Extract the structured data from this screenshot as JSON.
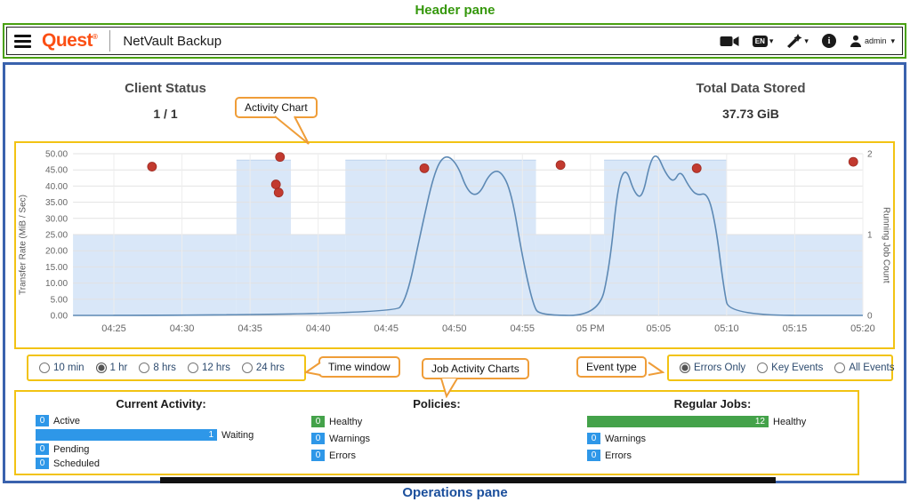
{
  "annotations": {
    "header_pane_label": "Header pane",
    "operations_pane_label": "Operations pane",
    "callouts": {
      "activity_chart": "Activity Chart",
      "time_window": "Time window",
      "job_activity_charts": "Job Activity Charts",
      "event_type": "Event type"
    }
  },
  "header": {
    "logo_text": "Quest",
    "logo_reg_mark": "®",
    "app_title": "NetVault Backup",
    "language_badge": "EN",
    "user_name": "admin",
    "icons": {
      "caret_down": "▾",
      "info_letter": "i"
    }
  },
  "summary": {
    "client_status": {
      "label": "Client Status",
      "value": "1 / 1"
    },
    "total_data_stored": {
      "label": "Total Data Stored",
      "value": "37.73 GiB"
    }
  },
  "chart_data": {
    "type": "line",
    "description": "Activity chart: transfer-rate line, running-job-count step area, error-event dots",
    "x_domain_minutes": [
      262,
      320
    ],
    "x_ticks": [
      {
        "t": 265,
        "label": "04:25"
      },
      {
        "t": 270,
        "label": "04:30"
      },
      {
        "t": 275,
        "label": "04:35"
      },
      {
        "t": 280,
        "label": "04:40"
      },
      {
        "t": 285,
        "label": "04:45"
      },
      {
        "t": 290,
        "label": "04:50"
      },
      {
        "t": 295,
        "label": "04:55"
      },
      {
        "t": 300,
        "label": "05 PM"
      },
      {
        "t": 305,
        "label": "05:05"
      },
      {
        "t": 310,
        "label": "05:10"
      },
      {
        "t": 315,
        "label": "05:15"
      },
      {
        "t": 320,
        "label": "05:20"
      }
    ],
    "y_left": {
      "label": "Transfer Rate (MiB / Sec)",
      "min": 0,
      "max": 50,
      "tick_step": 5
    },
    "y_right": {
      "label": "Running Job Count",
      "ticks": [
        0,
        1,
        2
      ]
    },
    "series": [
      {
        "name": "Running Job Count",
        "type": "step_area",
        "fill": "#d9e7f8",
        "edge": "#bdd4ee",
        "segments": [
          {
            "from": 262,
            "to": 274,
            "count": 1
          },
          {
            "from": 274,
            "to": 278,
            "count": 2
          },
          {
            "from": 278,
            "to": 282,
            "count": 1
          },
          {
            "from": 282,
            "to": 296,
            "count": 2
          },
          {
            "from": 296,
            "to": 301,
            "count": 1
          },
          {
            "from": 301,
            "to": 310,
            "count": 2
          },
          {
            "from": 310,
            "to": 320,
            "count": 1
          }
        ]
      },
      {
        "name": "Transfer Rate (MiB/Sec)",
        "type": "line",
        "color": "#5d89b4",
        "points": [
          [
            262,
            0
          ],
          [
            285.5,
            0
          ],
          [
            286.5,
            5
          ],
          [
            287.5,
            25
          ],
          [
            288.5,
            44
          ],
          [
            289.3,
            50
          ],
          [
            290.2,
            47
          ],
          [
            291,
            38
          ],
          [
            291.8,
            37
          ],
          [
            292.6,
            44
          ],
          [
            293.4,
            45
          ],
          [
            294.2,
            38
          ],
          [
            295,
            18
          ],
          [
            295.8,
            3
          ],
          [
            296.3,
            0
          ],
          [
            300.6,
            0
          ],
          [
            301.4,
            15
          ],
          [
            302,
            40
          ],
          [
            302.6,
            46
          ],
          [
            303.2,
            38
          ],
          [
            303.8,
            36
          ],
          [
            304.4,
            48
          ],
          [
            304.9,
            50
          ],
          [
            305.5,
            44
          ],
          [
            306.1,
            41
          ],
          [
            306.6,
            45
          ],
          [
            307.2,
            40
          ],
          [
            307.8,
            37
          ],
          [
            308.6,
            38
          ],
          [
            309.2,
            28
          ],
          [
            309.8,
            8
          ],
          [
            310.2,
            0
          ],
          [
            320,
            0
          ]
        ]
      },
      {
        "name": "Error Events",
        "type": "scatter",
        "color": "#c23a2f",
        "points": [
          [
            267.8,
            46
          ],
          [
            277.2,
            49
          ],
          [
            276.9,
            40.5
          ],
          [
            277.1,
            38
          ],
          [
            287.8,
            45.5
          ],
          [
            297.8,
            46.5
          ],
          [
            307.8,
            45.5
          ],
          [
            319.3,
            47.5
          ]
        ]
      }
    ]
  },
  "controls": {
    "time_window": {
      "options": [
        "10 min",
        "1 hr",
        "8 hrs",
        "12 hrs",
        "24 hrs"
      ],
      "selected": "1 hr"
    },
    "event_type": {
      "options": [
        "Errors Only",
        "Key Events",
        "All Events"
      ],
      "selected": "Errors Only"
    }
  },
  "operations": {
    "columns": [
      {
        "title": "Current Activity:",
        "bars": [
          {
            "value": 0,
            "label": "Active",
            "color": "#2e97e8",
            "fraction": 0.05
          },
          {
            "value": 1,
            "label": "Waiting",
            "color": "#2e97e8",
            "fraction": 1
          },
          {
            "value": 0,
            "label": "Pending",
            "color": "#2e97e8",
            "fraction": 0.05
          },
          {
            "value": 0,
            "label": "Scheduled",
            "color": "#2e97e8",
            "fraction": 0.05
          }
        ]
      },
      {
        "title": "Policies:",
        "bars": [
          {
            "value": 0,
            "label": "Healthy",
            "color": "#44a24a",
            "fraction": 0.06
          },
          {
            "value": 0,
            "label": "Warnings",
            "color": "#2e97e8",
            "fraction": 0.06
          },
          {
            "value": 0,
            "label": "Errors",
            "color": "#2e97e8",
            "fraction": 0.06
          }
        ]
      },
      {
        "title": "Regular Jobs:",
        "bars": [
          {
            "value": 12,
            "label": "Healthy",
            "color": "#44a24a",
            "fraction": 1
          },
          {
            "value": 0,
            "label": "Warnings",
            "color": "#2e97e8",
            "fraction": 0.06
          },
          {
            "value": 0,
            "label": "Errors",
            "color": "#2e97e8",
            "fraction": 0.06
          }
        ]
      }
    ]
  }
}
